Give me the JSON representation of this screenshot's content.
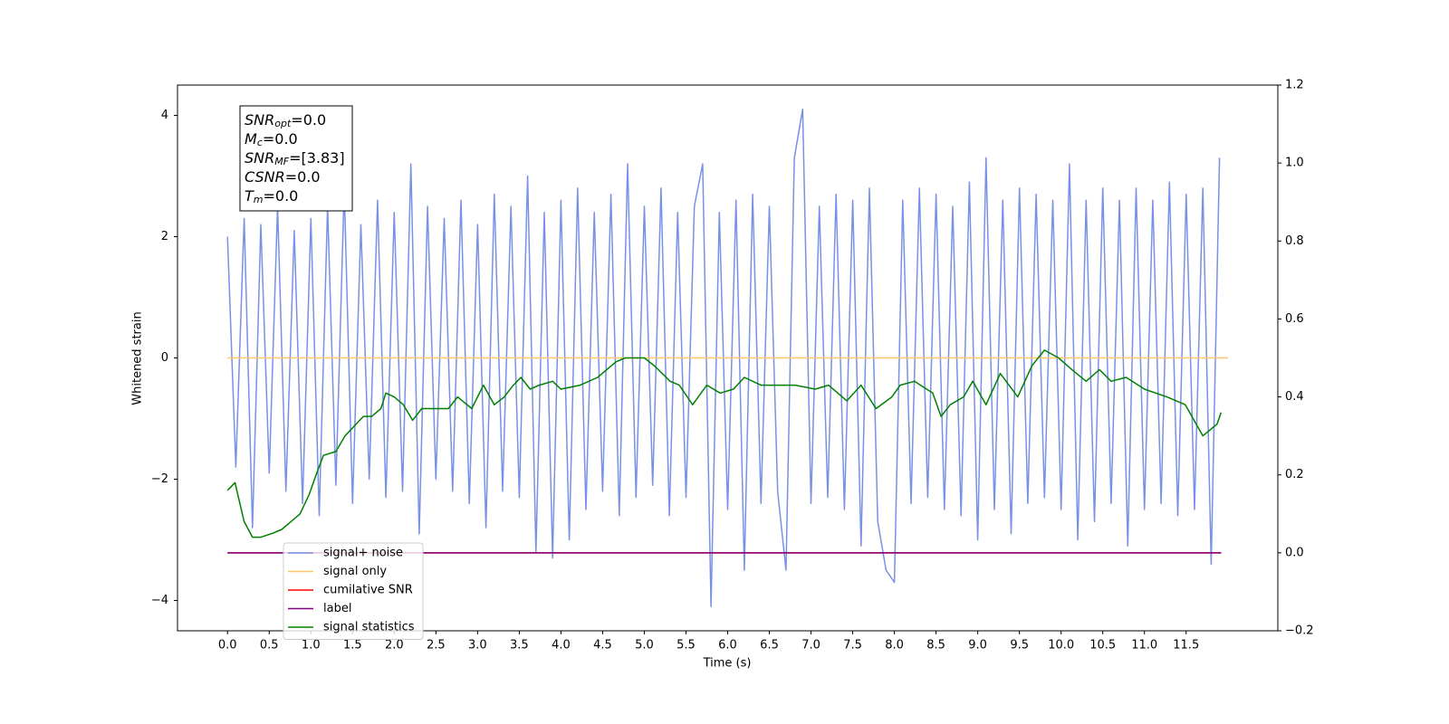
{
  "chart_data": {
    "type": "line",
    "xlabel": "Time (s)",
    "ylabel": "Whitened strain",
    "xlim": [
      -0.6,
      12.6
    ],
    "ylim": [
      -4.5,
      4.5
    ],
    "y2lim": [
      -0.2,
      1.2
    ],
    "xticks": [
      {
        "value": 0,
        "label": "0.0"
      },
      0.5,
      {
        "value": 1,
        "label": "1.0"
      },
      1.5,
      {
        "value": 2,
        "label": "2.0"
      },
      2.5,
      {
        "value": 3,
        "label": "3.0"
      },
      3.5,
      {
        "value": 4,
        "label": "4.0"
      },
      4.5,
      {
        "value": 5,
        "label": "5.0"
      },
      5.5,
      {
        "value": 6,
        "label": "6.0"
      },
      6.5,
      {
        "value": 7,
        "label": "7.0"
      },
      7.5,
      {
        "value": 8,
        "label": "8.0"
      },
      8.5,
      {
        "value": 9,
        "label": "9.0"
      },
      9.5,
      {
        "value": 10,
        "label": "10.0"
      },
      10.5,
      {
        "value": 11,
        "label": "11.0"
      },
      11.5
    ],
    "yticks": [
      {
        "value": -4,
        "label": "−4"
      },
      {
        "value": -2,
        "label": "−2"
      },
      0,
      2,
      4
    ],
    "y2ticks": [
      {
        "value": -0.2,
        "label": "−0.2"
      },
      {
        "value": 0,
        "label": "0.0"
      },
      0.2,
      0.4,
      0.6,
      0.8,
      {
        "value": 1,
        "label": "1.0"
      },
      1.2
    ],
    "legend": "lower left",
    "annotation": [
      {
        "name": "SNR",
        "sub": "opt",
        "value": "=0.0"
      },
      {
        "name": "M",
        "sub": "c",
        "value": "=0.0"
      },
      {
        "name": "SNR",
        "sub": "MF",
        "value": "=[3.83]"
      },
      {
        "name": "CSNR",
        "value": "=0.0"
      },
      {
        "name": "T",
        "sub": "m",
        "value": "=0.0"
      }
    ],
    "series": [
      {
        "name": "signal+ noise",
        "color": "#7891e6",
        "x": [
          0,
          0.1,
          0.2,
          0.3,
          0.4,
          0.5,
          0.6,
          0.7,
          0.8,
          0.9,
          1,
          1.1,
          1.2,
          1.3,
          1.4,
          1.5,
          1.6,
          1.7,
          1.8,
          1.9,
          2,
          2.1,
          2.2,
          2.3,
          2.4,
          2.5,
          2.6,
          2.7,
          2.8,
          2.9,
          3,
          3.1,
          3.2,
          3.3,
          3.4,
          3.5,
          3.6,
          3.7,
          3.8,
          3.9,
          4,
          4.1,
          4.2,
          4.3,
          4.4,
          4.5,
          4.6,
          4.7,
          4.8,
          4.9,
          5,
          5.1,
          5.2,
          5.3,
          5.4,
          5.5,
          5.6,
          5.7,
          5.8,
          5.9,
          6,
          6.1,
          6.2,
          6.3,
          6.4,
          6.5,
          6.6,
          6.7,
          6.8,
          6.9,
          7,
          7.1,
          7.2,
          7.3,
          7.4,
          7.5,
          7.6,
          7.7,
          7.8,
          7.9,
          8,
          8.1,
          8.2,
          8.3,
          8.4,
          8.5,
          8.6,
          8.7,
          8.8,
          8.9,
          9,
          9.1,
          9.2,
          9.3,
          9.4,
          9.5,
          9.6,
          9.7,
          9.8,
          9.9,
          10,
          10.1,
          10.2,
          10.3,
          10.4,
          10.5,
          10.6,
          10.7,
          10.8,
          10.9,
          11,
          11.1,
          11.2,
          11.3,
          11.4,
          11.5,
          11.6,
          11.7,
          11.8,
          11.9
        ],
        "values": [
          2.0,
          -1.8,
          2.3,
          -2.8,
          2.2,
          -1.9,
          2.5,
          -2.2,
          2.1,
          -2.4,
          2.3,
          -2.6,
          2.5,
          -2.1,
          2.8,
          -2.4,
          2.2,
          -2.0,
          2.6,
          -2.3,
          2.4,
          -2.2,
          3.2,
          -2.9,
          2.5,
          -2.0,
          2.3,
          -2.2,
          2.6,
          -2.4,
          2.2,
          -2.8,
          2.7,
          -2.2,
          2.5,
          -2.3,
          3.0,
          -3.2,
          2.4,
          -3.3,
          2.6,
          -3.0,
          2.8,
          -2.5,
          2.4,
          -2.2,
          2.7,
          -2.6,
          3.2,
          -2.3,
          2.5,
          -2.1,
          2.8,
          -2.6,
          2.4,
          -2.3,
          2.5,
          3.2,
          -4.1,
          2.4,
          -2.5,
          2.6,
          -3.5,
          2.7,
          -2.4,
          2.5,
          -2.2,
          -3.5,
          3.3,
          4.1,
          -2.4,
          2.5,
          -2.3,
          2.7,
          -2.5,
          2.6,
          -3.1,
          2.8,
          -2.7,
          -3.5,
          -3.7,
          2.6,
          -2.4,
          2.8,
          -2.3,
          2.7,
          -2.5,
          2.5,
          -2.6,
          2.9,
          -3.0,
          3.3,
          -2.5,
          2.6,
          -2.9,
          2.8,
          -2.4,
          2.7,
          -2.3,
          2.6,
          -2.5,
          3.2,
          -3.0,
          2.6,
          -2.7,
          2.8,
          -2.4,
          2.6,
          -3.1,
          2.8,
          -2.5,
          2.6,
          -2.4,
          2.9,
          -2.6,
          2.7,
          -2.5,
          2.8,
          -3.4,
          3.3
        ]
      },
      {
        "name": "signal only",
        "color": "#ffc56b",
        "x": [
          0,
          12
        ],
        "values": [
          0,
          0
        ]
      },
      {
        "name": "cumilative SNR",
        "color": "#ff0000",
        "axis": "y2",
        "x": [
          0,
          11.92
        ],
        "values": [
          0,
          0
        ]
      },
      {
        "name": "label",
        "color": "#800080",
        "axis": "y2",
        "x": [
          0,
          11.92
        ],
        "values": [
          0,
          0
        ]
      },
      {
        "name": "signal statistics",
        "color": "#008000",
        "axis": "y2",
        "x": [
          0,
          0.09,
          0.2,
          0.3,
          0.4,
          0.54,
          0.65,
          0.76,
          0.87,
          0.98,
          1.08,
          1.15,
          1.3,
          1.41,
          1.63,
          1.73,
          1.84,
          1.9,
          2.0,
          2.11,
          2.22,
          2.33,
          2.44,
          2.54,
          2.65,
          2.76,
          2.93,
          3.07,
          3.2,
          3.32,
          3.43,
          3.52,
          3.63,
          3.74,
          3.9,
          4.0,
          4.23,
          4.44,
          4.55,
          4.66,
          4.77,
          4.88,
          5.0,
          5.12,
          5.31,
          5.42,
          5.58,
          5.75,
          5.91,
          6.07,
          6.2,
          6.4,
          6.61,
          6.81,
          7.05,
          7.21,
          7.43,
          7.6,
          7.78,
          7.97,
          8.07,
          8.24,
          8.46,
          8.56,
          8.67,
          8.83,
          8.94,
          9.1,
          9.27,
          9.48,
          9.65,
          9.8,
          9.97,
          10.13,
          10.3,
          10.46,
          10.6,
          10.78,
          11.0,
          11.27,
          11.49,
          11.7,
          11.87,
          11.92
        ],
        "values": [
          0.16,
          0.18,
          0.08,
          0.04,
          0.04,
          0.05,
          0.06,
          0.08,
          0.1,
          0.15,
          0.21,
          0.25,
          0.26,
          0.3,
          0.35,
          0.35,
          0.37,
          0.41,
          0.4,
          0.38,
          0.34,
          0.37,
          0.37,
          0.37,
          0.37,
          0.4,
          0.37,
          0.43,
          0.38,
          0.4,
          0.43,
          0.45,
          0.42,
          0.43,
          0.44,
          0.42,
          0.43,
          0.45,
          0.47,
          0.49,
          0.5,
          0.5,
          0.5,
          0.48,
          0.44,
          0.43,
          0.38,
          0.43,
          0.41,
          0.42,
          0.45,
          0.43,
          0.43,
          0.43,
          0.42,
          0.43,
          0.39,
          0.43,
          0.37,
          0.4,
          0.43,
          0.44,
          0.41,
          0.35,
          0.38,
          0.4,
          0.44,
          0.38,
          0.46,
          0.4,
          0.48,
          0.52,
          0.5,
          0.47,
          0.44,
          0.47,
          0.44,
          0.45,
          0.42,
          0.4,
          0.38,
          0.3,
          0.33,
          0.36
        ]
      }
    ]
  }
}
